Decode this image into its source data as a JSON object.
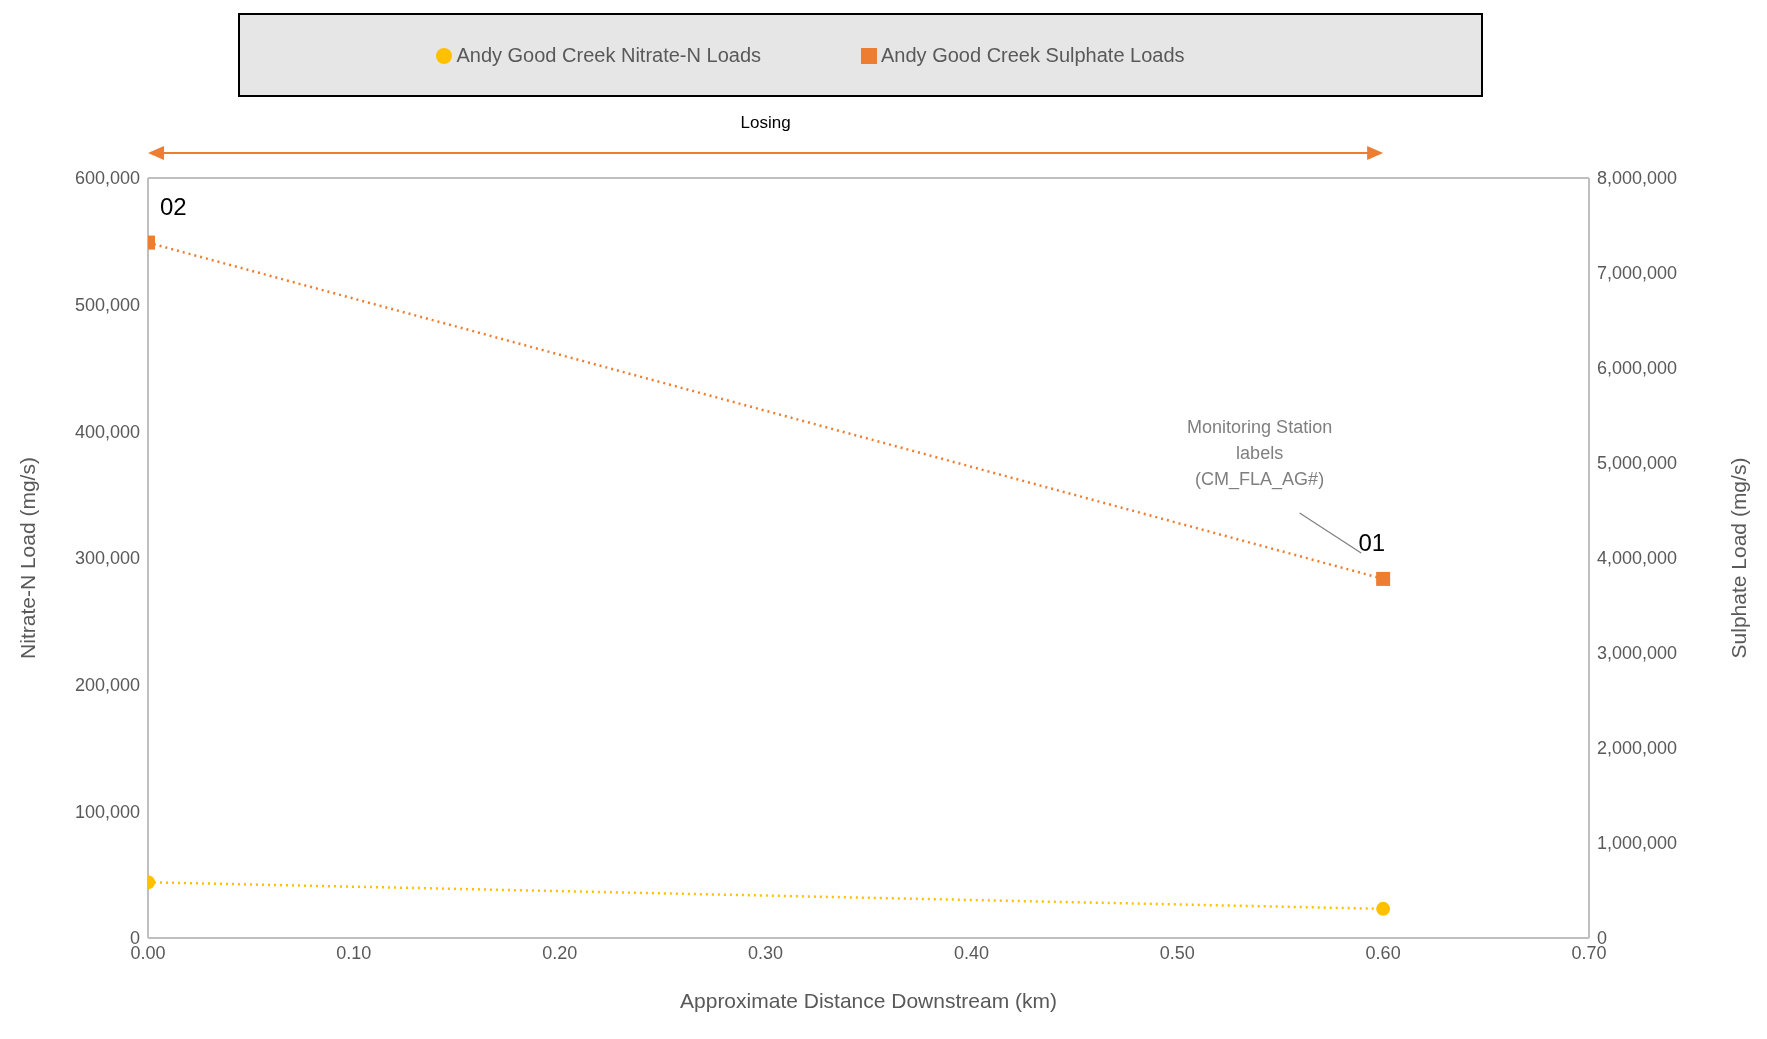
{
  "chart_data": {
    "type": "line",
    "xlabel": "Approximate Distance Downstream (km)",
    "ylabel": "Nitrate-N Load (mg/s)",
    "y2label": "Sulphate Load (mg/s)",
    "x": [
      0,
      0.6
    ],
    "series": [
      {
        "name": "Andy Good Creek Nitrate-N Loads",
        "color": "#ffc000",
        "values": [
          44000,
          23000
        ],
        "marker": "circle"
      },
      {
        "name": "Andy Good Creek Sulphate Loads",
        "color": "#ed7d31",
        "values": [
          7320000,
          3780000
        ],
        "marker": "square",
        "axis": "y2"
      }
    ],
    "line_style": "dotted",
    "legend": "top",
    "grid": false,
    "xlim": [
      0,
      0.7
    ],
    "xticks": [
      {
        "value": 0,
        "label": "0.00"
      },
      {
        "value": 0.1,
        "label": "0.10"
      },
      {
        "value": 0.2,
        "label": "0.20"
      },
      {
        "value": 0.3,
        "label": "0.30"
      },
      {
        "value": 0.4,
        "label": "0.40"
      },
      {
        "value": 0.5,
        "label": "0.50"
      },
      {
        "value": 0.6,
        "label": "0.60"
      },
      {
        "value": 0.7,
        "label": "0.70"
      }
    ],
    "ylim": [
      0,
      600000
    ],
    "yticks": [
      0,
      {
        "value": 100000,
        "label": "100,000"
      },
      {
        "value": 200000,
        "label": "200,000"
      },
      {
        "value": 300000,
        "label": "300,000"
      },
      {
        "value": 400000,
        "label": "400,000"
      },
      {
        "value": 500000,
        "label": "500,000"
      },
      {
        "value": 600000,
        "label": "600,000"
      }
    ],
    "y2lim": [
      0,
      8000000
    ],
    "y2ticks": [
      0,
      {
        "value": 1000000,
        "label": "1,000,000"
      },
      {
        "value": 2000000,
        "label": "2,000,000"
      },
      {
        "value": 3000000,
        "label": "3,000,000"
      },
      {
        "value": 4000000,
        "label": "4,000,000"
      },
      {
        "value": 5000000,
        "label": "5,000,000"
      },
      {
        "value": 6000000,
        "label": "6,000,000"
      },
      {
        "value": 7000000,
        "label": "7,000,000"
      },
      {
        "value": 8000000,
        "label": "8,000,000"
      }
    ],
    "annotations": [
      {
        "text": "Losing"
      },
      "02",
      "01",
      "Monitoring Station labels (CM_FLA_AG#)"
    ]
  }
}
